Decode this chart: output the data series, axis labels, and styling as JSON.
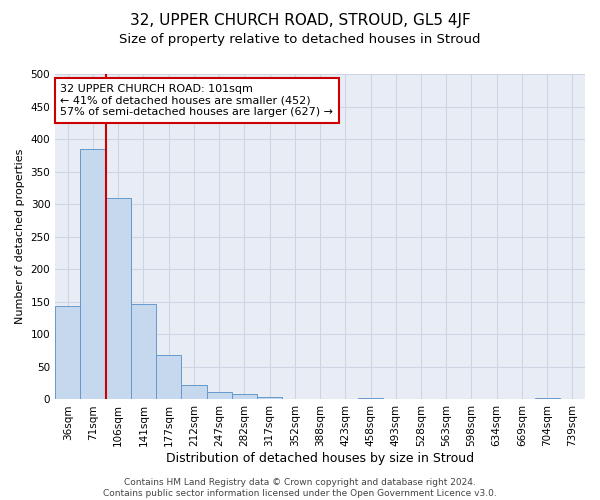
{
  "title": "32, UPPER CHURCH ROAD, STROUD, GL5 4JF",
  "subtitle": "Size of property relative to detached houses in Stroud",
  "xlabel": "Distribution of detached houses by size in Stroud",
  "ylabel": "Number of detached properties",
  "bar_labels": [
    "36sqm",
    "71sqm",
    "106sqm",
    "141sqm",
    "177sqm",
    "212sqm",
    "247sqm",
    "282sqm",
    "317sqm",
    "352sqm",
    "388sqm",
    "423sqm",
    "458sqm",
    "493sqm",
    "528sqm",
    "563sqm",
    "598sqm",
    "634sqm",
    "669sqm",
    "704sqm",
    "739sqm"
  ],
  "bar_values": [
    143,
    385,
    310,
    147,
    69,
    22,
    11,
    8,
    4,
    0,
    0,
    0,
    3,
    0,
    0,
    0,
    0,
    0,
    0,
    3,
    0
  ],
  "bar_color": "#c5d8ed",
  "bar_edge_color": "#6699cc",
  "highlight_line_color": "#cc0000",
  "annotation_text": "32 UPPER CHURCH ROAD: 101sqm\n← 41% of detached houses are smaller (452)\n57% of semi-detached houses are larger (627) →",
  "annotation_box_color": "#ffffff",
  "annotation_box_edge": "#cc0000",
  "ylim": [
    0,
    500
  ],
  "yticks": [
    0,
    50,
    100,
    150,
    200,
    250,
    300,
    350,
    400,
    450,
    500
  ],
  "grid_color": "#cdd5e5",
  "background_color": "#e8edf5",
  "footer_text": "Contains HM Land Registry data © Crown copyright and database right 2024.\nContains public sector information licensed under the Open Government Licence v3.0.",
  "title_fontsize": 11,
  "subtitle_fontsize": 9.5,
  "xlabel_fontsize": 9,
  "ylabel_fontsize": 8,
  "tick_fontsize": 7.5,
  "annotation_fontsize": 8,
  "footer_fontsize": 6.5
}
